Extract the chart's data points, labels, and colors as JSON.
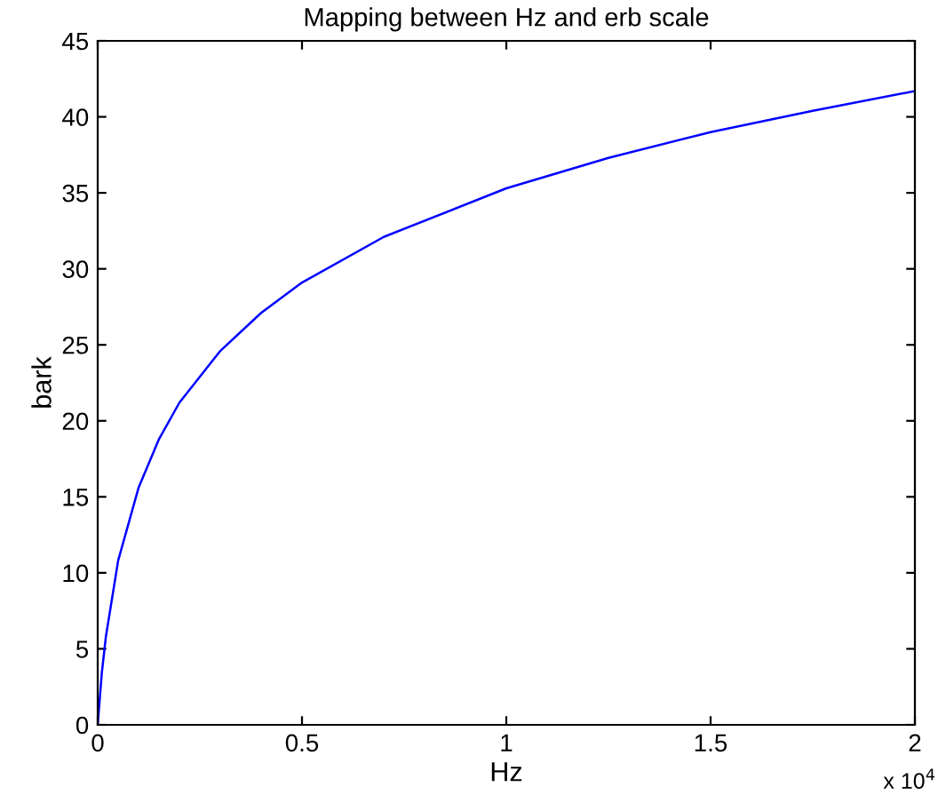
{
  "chart_data": {
    "type": "line",
    "title": "Mapping between Hz and erb scale",
    "xlabel": "Hz",
    "ylabel": "bark",
    "x": [
      0,
      0.01,
      0.02,
      0.05,
      0.1,
      0.15,
      0.2,
      0.3,
      0.4,
      0.5,
      0.7,
      1.0,
      1.25,
      1.5,
      1.75,
      2.0
    ],
    "series": [
      {
        "color": "#0000ff",
        "values": [
          0,
          3.4,
          5.8,
          10.8,
          15.6,
          18.8,
          21.2,
          24.6,
          27.1,
          29.1,
          32.1,
          35.3,
          37.3,
          39.0,
          40.4,
          41.7
        ]
      }
    ],
    "xlim": [
      0,
      2
    ],
    "xticks": [
      0,
      0.5,
      1,
      1.5,
      2
    ],
    "ylim": [
      0,
      45
    ],
    "yticks": [
      0,
      5,
      10,
      15,
      20,
      25,
      30,
      35,
      40,
      45
    ],
    "annotations": [
      "x 10$^{4}$"
    ],
    "grid": false,
    "legend": false,
    "marker": "none",
    "line_style": "solid"
  }
}
